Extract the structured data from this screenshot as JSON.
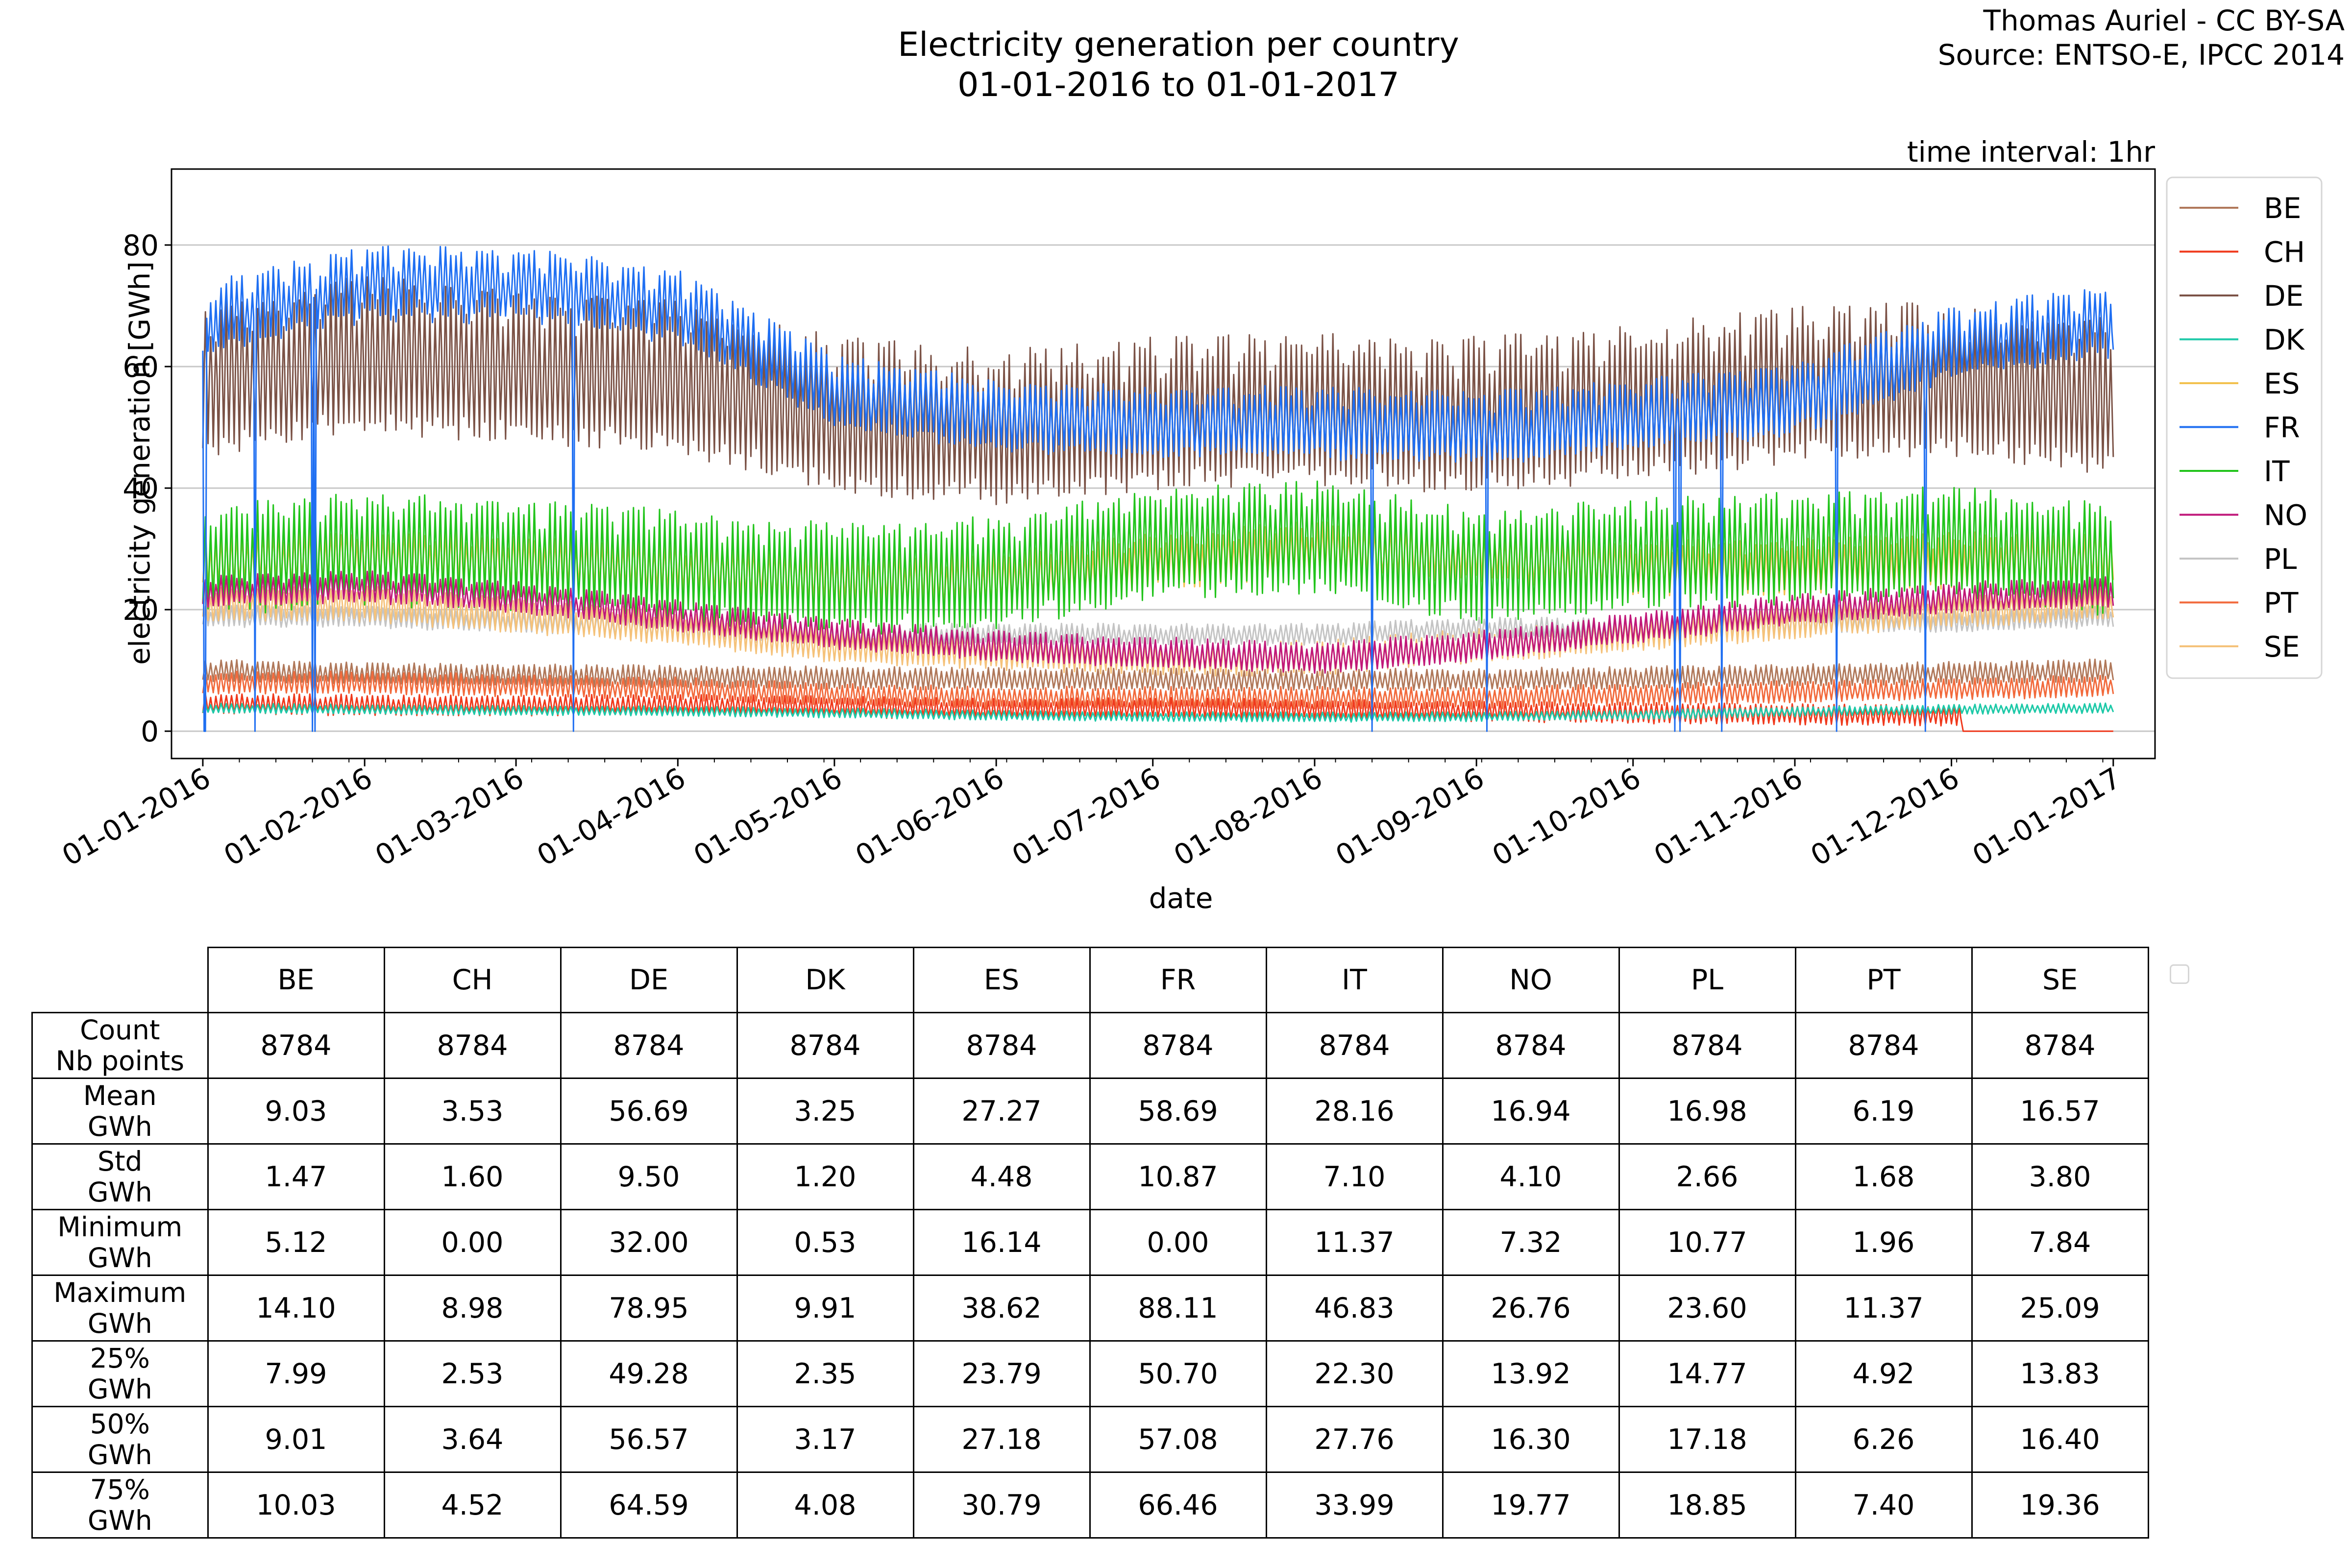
{
  "title_line1": "Electricity generation per country",
  "title_line2": "01-01-2016 to 01-01-2017",
  "credit_line1": "Thomas Auriel - CC BY-SA",
  "credit_line2": "Source: ENTSO-E, IPCC 2014",
  "time_interval": "time interval: 1hr",
  "chart_data": {
    "type": "line",
    "xlabel": "date",
    "ylabel": "electricity generation [GWh]",
    "x_tick_labels": [
      "01-01-2016",
      "01-02-2016",
      "01-03-2016",
      "01-04-2016",
      "01-05-2016",
      "01-06-2016",
      "01-07-2016",
      "01-08-2016",
      "01-09-2016",
      "01-10-2016",
      "01-11-2016",
      "01-12-2016",
      "01-01-2017"
    ],
    "x_tick_days": [
      0,
      31,
      60,
      91,
      121,
      152,
      182,
      213,
      244,
      274,
      305,
      335,
      366
    ],
    "xlim_days": [
      -6,
      374
    ],
    "y_ticks": [
      0,
      20,
      40,
      60,
      80
    ],
    "ylim": [
      -4.5,
      92.5
    ],
    "grid": "horizontal",
    "legend_position": "outside-right",
    "series": [
      {
        "name": "BE",
        "color": "#b0785a",
        "mean": 9.03,
        "std": 1.47,
        "min": 5.12,
        "max": 14.1,
        "amp": 1.6,
        "trend": [
          10,
          9.5,
          9.2,
          9,
          8.8,
          8.6,
          8.5,
          8.4,
          8.5,
          8.8,
          9.2,
          9.6,
          10
        ]
      },
      {
        "name": "CH",
        "color": "#f0391c",
        "mean": 3.53,
        "std": 1.6,
        "min": 0.0,
        "max": 8.98,
        "amp": 1.5,
        "trend": [
          4.5,
          4.3,
          4.2,
          4.4,
          4,
          3.6,
          3.8,
          3.5,
          3.3,
          3,
          2.8,
          2.6,
          0.5
        ]
      },
      {
        "name": "DE",
        "color": "#7b5246",
        "mean": 56.69,
        "std": 9.5,
        "min": 32.0,
        "max": 78.95,
        "amp": 11,
        "trend": [
          58,
          62,
          60,
          58,
          52,
          50,
          52,
          53,
          52,
          54,
          57,
          58,
          55
        ]
      },
      {
        "name": "DK",
        "color": "#1ec9a8",
        "mean": 3.25,
        "std": 1.2,
        "min": 0.53,
        "max": 9.91,
        "amp": 0.7,
        "trend": [
          3.8,
          3.6,
          3.4,
          3.3,
          3,
          2.6,
          2.4,
          2.3,
          2.4,
          2.7,
          3.2,
          3.6,
          3.8
        ]
      },
      {
        "name": "ES",
        "color": "#f2c14e",
        "mean": 27.27,
        "std": 4.48,
        "min": 16.14,
        "max": 38.62,
        "amp": 4,
        "trend": [
          28,
          29,
          28,
          27,
          25,
          25,
          28,
          30,
          29,
          27,
          27,
          28,
          29
        ]
      },
      {
        "name": "FR",
        "color": "#1f6ff2",
        "mean": 58.69,
        "std": 10.87,
        "min": 0.0,
        "max": 88.11,
        "amp": 5,
        "trend": [
          68,
          74,
          74,
          70,
          56,
          52,
          51,
          51,
          50,
          52,
          55,
          64,
          68
        ]
      },
      {
        "name": "IT",
        "color": "#22c41c",
        "mean": 28.16,
        "std": 7.1,
        "min": 11.37,
        "max": 46.83,
        "amp": 8,
        "trend": [
          28,
          30,
          29,
          27,
          25,
          26,
          31,
          32,
          27,
          29,
          30,
          31,
          28
        ]
      },
      {
        "name": "NO",
        "color": "#c0187a",
        "mean": 16.94,
        "std": 4.1,
        "min": 7.32,
        "max": 26.76,
        "amp": 2.2,
        "trend": [
          23,
          24,
          22,
          19,
          16,
          14,
          13,
          12,
          14,
          17,
          20,
          22,
          23
        ]
      },
      {
        "name": "PL",
        "color": "#c4c4c4",
        "mean": 16.98,
        "std": 2.66,
        "min": 10.77,
        "max": 23.6,
        "amp": 1.5,
        "trend": [
          19,
          19,
          18,
          17,
          16,
          16,
          16,
          16,
          17,
          17,
          18,
          18,
          19
        ]
      },
      {
        "name": "PT",
        "color": "#f26a3c",
        "mean": 6.19,
        "std": 1.68,
        "min": 1.96,
        "max": 11.37,
        "amp": 1.6,
        "trend": [
          8,
          8,
          7.5,
          7,
          6,
          5.5,
          5.5,
          5.5,
          5.5,
          6,
          6.5,
          7,
          7.5
        ]
      },
      {
        "name": "SE",
        "color": "#f5c27a",
        "mean": 16.57,
        "std": 3.8,
        "min": 7.84,
        "max": 25.09,
        "amp": 2.5,
        "trend": [
          21,
          21,
          19,
          17,
          14,
          13,
          12,
          12,
          14,
          16,
          18,
          20,
          21
        ]
      }
    ],
    "fr_dropouts": [
      0.35,
      0.4,
      10,
      21,
      21.5,
      71,
      224,
      246,
      282,
      283,
      291,
      313,
      330
    ]
  },
  "table": {
    "columns": [
      "BE",
      "CH",
      "DE",
      "DK",
      "ES",
      "FR",
      "IT",
      "NO",
      "PL",
      "PT",
      "SE"
    ],
    "rows": [
      {
        "label1": "Count",
        "label2": "Nb points",
        "values": [
          "8784",
          "8784",
          "8784",
          "8784",
          "8784",
          "8784",
          "8784",
          "8784",
          "8784",
          "8784",
          "8784"
        ]
      },
      {
        "label1": "Mean",
        "label2": "GWh",
        "values": [
          "9.03",
          "3.53",
          "56.69",
          "3.25",
          "27.27",
          "58.69",
          "28.16",
          "16.94",
          "16.98",
          "6.19",
          "16.57"
        ]
      },
      {
        "label1": "Std",
        "label2": "GWh",
        "values": [
          "1.47",
          "1.60",
          "9.50",
          "1.20",
          "4.48",
          "10.87",
          "7.10",
          "4.10",
          "2.66",
          "1.68",
          "3.80"
        ]
      },
      {
        "label1": "Minimum",
        "label2": "GWh",
        "values": [
          "5.12",
          "0.00",
          "32.00",
          "0.53",
          "16.14",
          "0.00",
          "11.37",
          "7.32",
          "10.77",
          "1.96",
          "7.84"
        ]
      },
      {
        "label1": "Maximum",
        "label2": "GWh",
        "values": [
          "14.10",
          "8.98",
          "78.95",
          "9.91",
          "38.62",
          "88.11",
          "46.83",
          "26.76",
          "23.60",
          "11.37",
          "25.09"
        ]
      },
      {
        "label1": "25%",
        "label2": "GWh",
        "values": [
          "7.99",
          "2.53",
          "49.28",
          "2.35",
          "23.79",
          "50.70",
          "22.30",
          "13.92",
          "14.77",
          "4.92",
          "13.83"
        ]
      },
      {
        "label1": "50%",
        "label2": "GWh",
        "values": [
          "9.01",
          "3.64",
          "56.57",
          "3.17",
          "27.18",
          "57.08",
          "27.76",
          "16.30",
          "17.18",
          "6.26",
          "16.40"
        ]
      },
      {
        "label1": "75%",
        "label2": "GWh",
        "values": [
          "10.03",
          "4.52",
          "64.59",
          "4.08",
          "30.79",
          "66.46",
          "33.99",
          "19.77",
          "18.85",
          "7.40",
          "19.36"
        ]
      }
    ]
  }
}
